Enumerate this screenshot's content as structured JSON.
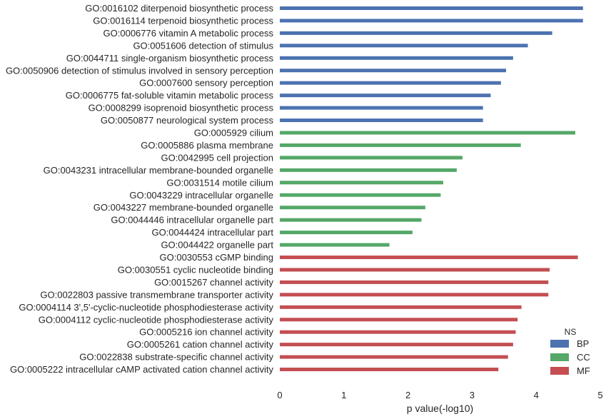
{
  "chart_data": {
    "type": "bar",
    "orientation": "horizontal",
    "xlabel": "p value(-log10)",
    "ylabel": "",
    "xlim": [
      0,
      5
    ],
    "xticks": [
      0,
      1,
      2,
      3,
      4,
      5
    ],
    "grid": false,
    "legend": {
      "title": "NS",
      "position": "bottom-right",
      "entries": [
        {
          "name": "BP",
          "color": "#4c72b0"
        },
        {
          "name": "CC",
          "color": "#55a868"
        },
        {
          "name": "MF",
          "color": "#c44e52"
        }
      ]
    },
    "categories": [
      "GO:0016102 diterpenoid biosynthetic process",
      "GO:0016114 terpenoid biosynthetic process",
      "GO:0006776 vitamin A metabolic process",
      "GO:0051606 detection of stimulus",
      "GO:0044711 single-organism biosynthetic process",
      "GO:0050906 detection of stimulus involved in sensory perception",
      "GO:0007600 sensory perception",
      "GO:0006775 fat-soluble vitamin metabolic process",
      "GO:0008299 isoprenoid biosynthetic process",
      "GO:0050877 neurological system process",
      "GO:0005929 cilium",
      "GO:0005886 plasma membrane",
      "GO:0042995 cell projection",
      "GO:0043231 intracellular membrane-bounded organelle",
      "GO:0031514 motile cilium",
      "GO:0043229 intracellular organelle",
      "GO:0043227 membrane-bounded organelle",
      "GO:0044446 intracellular organelle part",
      "GO:0044424 intracellular part",
      "GO:0044422 organelle part",
      "GO:0030553 cGMP binding",
      "GO:0030551 cyclic nucleotide binding",
      "GO:0015267 channel activity",
      "GO:0022803 passive transmembrane transporter activity",
      "GO:0004114 3',5'-cyclic-nucleotide phosphodiesterase activity",
      "GO:0004112 cyclic-nucleotide phosphodiesterase activity",
      "GO:0005216 ion channel activity",
      "GO:0005261 cation channel activity",
      "GO:0022838 substrate-specific channel activity",
      "GO:0005222 intracellular cAMP activated cation channel activity"
    ],
    "ns": [
      "BP",
      "BP",
      "BP",
      "BP",
      "BP",
      "BP",
      "BP",
      "BP",
      "BP",
      "BP",
      "CC",
      "CC",
      "CC",
      "CC",
      "CC",
      "CC",
      "CC",
      "CC",
      "CC",
      "CC",
      "MF",
      "MF",
      "MF",
      "MF",
      "MF",
      "MF",
      "MF",
      "MF",
      "MF",
      "MF"
    ],
    "values": [
      4.73,
      4.73,
      4.25,
      3.87,
      3.64,
      3.53,
      3.45,
      3.29,
      3.17,
      3.17,
      4.61,
      3.76,
      2.85,
      2.76,
      2.55,
      2.51,
      2.27,
      2.21,
      2.07,
      1.71,
      4.65,
      4.21,
      4.19,
      4.19,
      3.77,
      3.71,
      3.68,
      3.64,
      3.56,
      3.41
    ]
  }
}
